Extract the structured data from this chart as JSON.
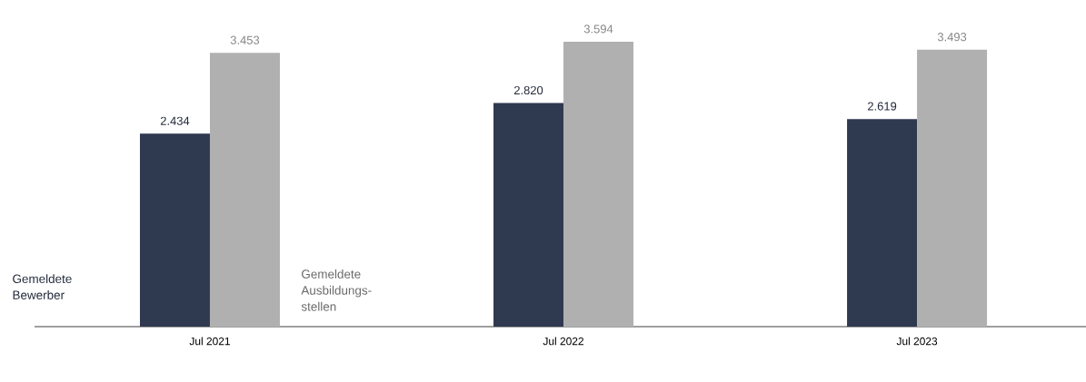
{
  "chart_data": {
    "type": "bar",
    "categories": [
      "Jul 2021",
      "Jul 2022",
      "Jul 2023"
    ],
    "series": [
      {
        "name": "Gemeldete Bewerber",
        "color": "#2f394f",
        "values": [
          2434,
          2820,
          2619
        ],
        "value_labels": [
          "2.434",
          "2.820",
          "2.619"
        ]
      },
      {
        "name": "Gemeldete Ausbildungs-stellen",
        "color": "#b0b0b0",
        "values": [
          3453,
          3594,
          3493
        ],
        "value_labels": [
          "3.453",
          "3.594",
          "3.493"
        ]
      }
    ],
    "legend": false
  }
}
